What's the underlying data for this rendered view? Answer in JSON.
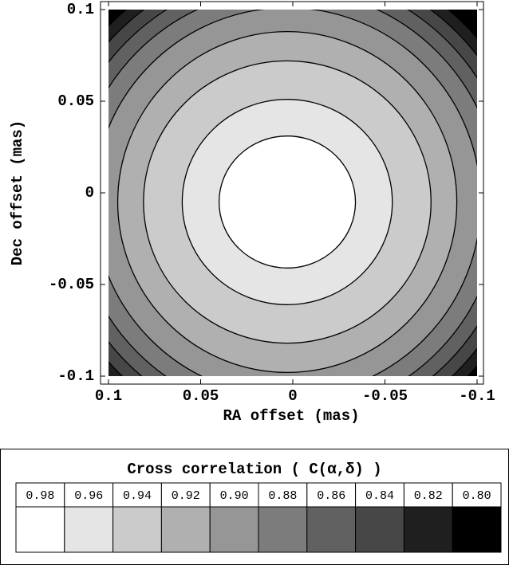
{
  "chart_data": {
    "type": "contour",
    "xlabel": "RA offset (mas)",
    "ylabel": "Dec offset (mas)",
    "xlim": [
      0.1,
      -0.1
    ],
    "ylim": [
      -0.1,
      0.1
    ],
    "xticks": [
      0.1,
      0.05,
      0,
      -0.05,
      -0.1
    ],
    "yticks": [
      -0.1,
      -0.05,
      0,
      0.05,
      0.1
    ],
    "contours": [
      {
        "level": 0.82,
        "cx": 0.003,
        "cy": -0.005,
        "rx": 0.136,
        "ry": 0.137
      },
      {
        "level": 0.84,
        "cx": 0.003,
        "cy": -0.005,
        "rx": 0.13,
        "ry": 0.131
      },
      {
        "level": 0.86,
        "cx": 0.003,
        "cy": -0.005,
        "rx": 0.123,
        "ry": 0.124
      },
      {
        "level": 0.88,
        "cx": 0.003,
        "cy": -0.005,
        "rx": 0.115,
        "ry": 0.116
      },
      {
        "level": 0.9,
        "cx": 0.003,
        "cy": -0.005,
        "rx": 0.105,
        "ry": 0.106
      },
      {
        "level": 0.92,
        "cx": 0.003,
        "cy": -0.005,
        "rx": 0.092,
        "ry": 0.093
      },
      {
        "level": 0.94,
        "cx": 0.003,
        "cy": -0.005,
        "rx": 0.078,
        "ry": 0.077
      },
      {
        "level": 0.96,
        "cx": 0.003,
        "cy": -0.005,
        "rx": 0.057,
        "ry": 0.056
      },
      {
        "level": 0.98,
        "cx": 0.003,
        "cy": -0.005,
        "rx": 0.037,
        "ry": 0.036
      }
    ],
    "legend": {
      "title": "Cross correlation ( C(α,δ) )",
      "levels": [
        0.98,
        0.96,
        0.94,
        0.92,
        0.9,
        0.88,
        0.86,
        0.84,
        0.82,
        0.8
      ],
      "value_labels": [
        "0.98",
        "0.96",
        "0.94",
        "0.92",
        "0.90",
        "0.88",
        "0.86",
        "0.84",
        "0.82",
        "0.80"
      ],
      "colors": [
        "#ffffff",
        "#e5e5e5",
        "#cbcbcb",
        "#b0b0b0",
        "#969696",
        "#7c7c7c",
        "#616161",
        "#474747",
        "#1f1f1f",
        "#000000"
      ]
    }
  }
}
